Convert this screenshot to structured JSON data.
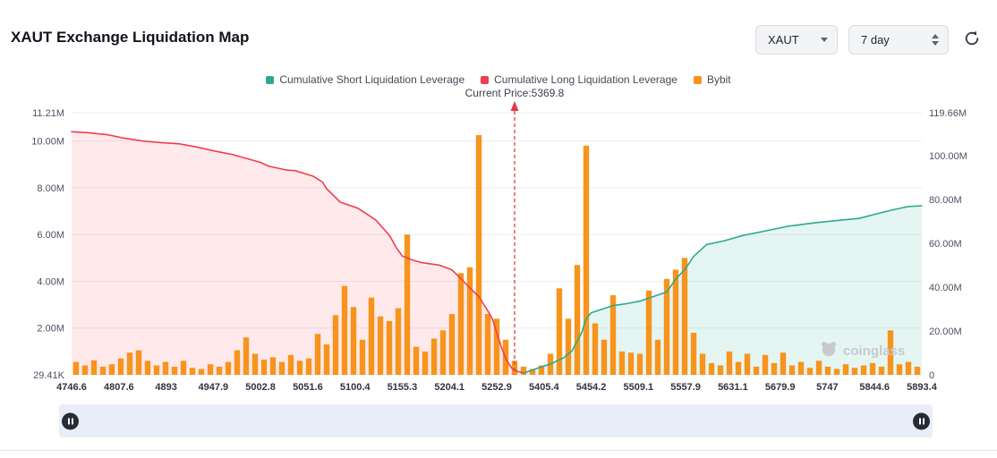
{
  "header": {
    "title": "XAUT Exchange Liquidation Map"
  },
  "controls": {
    "symbol_select": "XAUT",
    "range_select": "7 day",
    "refresh_icon": "refresh-icon"
  },
  "legend": {
    "items": [
      {
        "label": "Cumulative Short Liquidation Leverage",
        "color": "#2ba98f"
      },
      {
        "label": "Cumulative Long Liquidation Leverage",
        "color": "#f03e4d"
      },
      {
        "label": "Bybit",
        "color": "#f7941d"
      }
    ]
  },
  "current_price_label": "Current Price:5369.8",
  "watermark": "coinglass",
  "chart_data": {
    "type": "bar+line",
    "title": "XAUT Exchange Liquidation Map",
    "grid": true,
    "left_axis": {
      "max": 11.21,
      "unit": "M",
      "ticks": [
        {
          "v": 11.21,
          "label": "11.21M"
        },
        {
          "v": 10,
          "label": "10.00M"
        },
        {
          "v": 8,
          "label": "8.00M"
        },
        {
          "v": 6,
          "label": "6.00M"
        },
        {
          "v": 4,
          "label": "4.00M"
        },
        {
          "v": 2,
          "label": "2.00M"
        },
        {
          "v": 0,
          "label": "29.41K"
        }
      ]
    },
    "right_axis": {
      "max": 119.66,
      "unit": "M",
      "ticks": [
        {
          "v": 119.66,
          "label": "119.66M"
        },
        {
          "v": 100,
          "label": "100.00M"
        },
        {
          "v": 80,
          "label": "80.00M"
        },
        {
          "v": 60,
          "label": "60.00M"
        },
        {
          "v": 40,
          "label": "40.00M"
        },
        {
          "v": 20,
          "label": "20.00M"
        },
        {
          "v": 0,
          "label": "0"
        }
      ]
    },
    "x_labels": [
      "4746.6",
      "4807.6",
      "4893",
      "4947.9",
      "5002.8",
      "5051.6",
      "5100.4",
      "5155.3",
      "5204.1",
      "5252.9",
      "5405.4",
      "5454.2",
      "5509.1",
      "5557.9",
      "5631.1",
      "5679.9",
      "5747",
      "5844.6",
      "5893.4"
    ],
    "bars": {
      "name": "Bybit",
      "color": "#f7941d",
      "axis": "left",
      "values": [
        0.55,
        0.4,
        0.62,
        0.35,
        0.45,
        0.7,
        0.95,
        1.05,
        0.6,
        0.4,
        0.55,
        0.35,
        0.6,
        0.3,
        0.25,
        0.45,
        0.35,
        0.55,
        1.05,
        1.6,
        0.9,
        0.65,
        0.75,
        0.55,
        0.85,
        0.6,
        0.7,
        1.75,
        1.3,
        2.55,
        3.8,
        2.9,
        1.5,
        3.3,
        2.5,
        2.3,
        2.85,
        6.0,
        1.2,
        1.0,
        1.55,
        1.9,
        2.6,
        4.35,
        4.6,
        10.25,
        2.6,
        2.4,
        1.5,
        0.6,
        0.35,
        0.25,
        0.4,
        0.9,
        3.7,
        2.4,
        4.7,
        9.8,
        2.2,
        1.5,
        3.4,
        1.0,
        0.95,
        0.9,
        3.6,
        1.5,
        4.1,
        4.5,
        5.0,
        1.8,
        0.9,
        0.5,
        0.4,
        1.0,
        0.55,
        0.9,
        0.35,
        0.85,
        0.5,
        0.95,
        0.4,
        0.55,
        0.3,
        0.6,
        0.35,
        0.25,
        0.45,
        0.3,
        0.4,
        0.5,
        0.35,
        1.9,
        0.45,
        0.55,
        0.35
      ]
    },
    "lines": [
      {
        "name": "Cumulative Long Liquidation Leverage",
        "color": "#f03e4d",
        "fill": "rgba(242,58,76,0.11)",
        "axis": "right",
        "points": [
          [
            0.0,
            111
          ],
          [
            0.02,
            110.5
          ],
          [
            0.042,
            109.6
          ],
          [
            0.063,
            108
          ],
          [
            0.084,
            106.7
          ],
          [
            0.105,
            106
          ],
          [
            0.126,
            105.5
          ],
          [
            0.147,
            104
          ],
          [
            0.168,
            102.2
          ],
          [
            0.19,
            100.5
          ],
          [
            0.2,
            99.4
          ],
          [
            0.222,
            97
          ],
          [
            0.232,
            95.2
          ],
          [
            0.253,
            93.5
          ],
          [
            0.263,
            93.2
          ],
          [
            0.284,
            90.7
          ],
          [
            0.295,
            88
          ],
          [
            0.3,
            85
          ],
          [
            0.316,
            78.8
          ],
          [
            0.337,
            76
          ],
          [
            0.358,
            70.6
          ],
          [
            0.374,
            63.6
          ],
          [
            0.382,
            58
          ],
          [
            0.389,
            54.2
          ],
          [
            0.4,
            52.5
          ],
          [
            0.411,
            51.3
          ],
          [
            0.432,
            50.1
          ],
          [
            0.447,
            48
          ],
          [
            0.458,
            43.9
          ],
          [
            0.468,
            39.8
          ],
          [
            0.479,
            35.7
          ],
          [
            0.489,
            29.6
          ],
          [
            0.495,
            25.4
          ],
          [
            0.5,
            19.3
          ],
          [
            0.505,
            13.1
          ],
          [
            0.511,
            7
          ],
          [
            0.518,
            2.9
          ],
          [
            0.524,
            1.6
          ],
          [
            0.532,
            0.8
          ]
        ]
      },
      {
        "name": "Cumulative Short Liquidation Leverage",
        "color": "#2ba98f",
        "fill": "rgba(43,169,143,0.12)",
        "axis": "right",
        "points": [
          [
            0.532,
            0.8
          ],
          [
            0.547,
            2.9
          ],
          [
            0.563,
            4.9
          ],
          [
            0.579,
            7.8
          ],
          [
            0.589,
            11.1
          ],
          [
            0.6,
            19.3
          ],
          [
            0.605,
            25.4
          ],
          [
            0.611,
            28.3
          ],
          [
            0.621,
            29.6
          ],
          [
            0.637,
            31.6
          ],
          [
            0.653,
            32.5
          ],
          [
            0.668,
            33.6
          ],
          [
            0.684,
            35.7
          ],
          [
            0.7,
            37.8
          ],
          [
            0.711,
            43.9
          ],
          [
            0.721,
            48
          ],
          [
            0.732,
            54.2
          ],
          [
            0.747,
            59.5
          ],
          [
            0.768,
            61.2
          ],
          [
            0.789,
            63.6
          ],
          [
            0.811,
            65.3
          ],
          [
            0.842,
            67.8
          ],
          [
            0.874,
            69.4
          ],
          [
            0.905,
            70.6
          ],
          [
            0.926,
            71.4
          ],
          [
            0.947,
            73.5
          ],
          [
            0.968,
            75.5
          ],
          [
            0.984,
            76.8
          ],
          [
            1.0,
            77.2
          ]
        ]
      }
    ],
    "current_price": {
      "fraction": 0.521,
      "value": 5369.8,
      "label": "Current Price:5369.8",
      "color": "#e13b47"
    }
  }
}
